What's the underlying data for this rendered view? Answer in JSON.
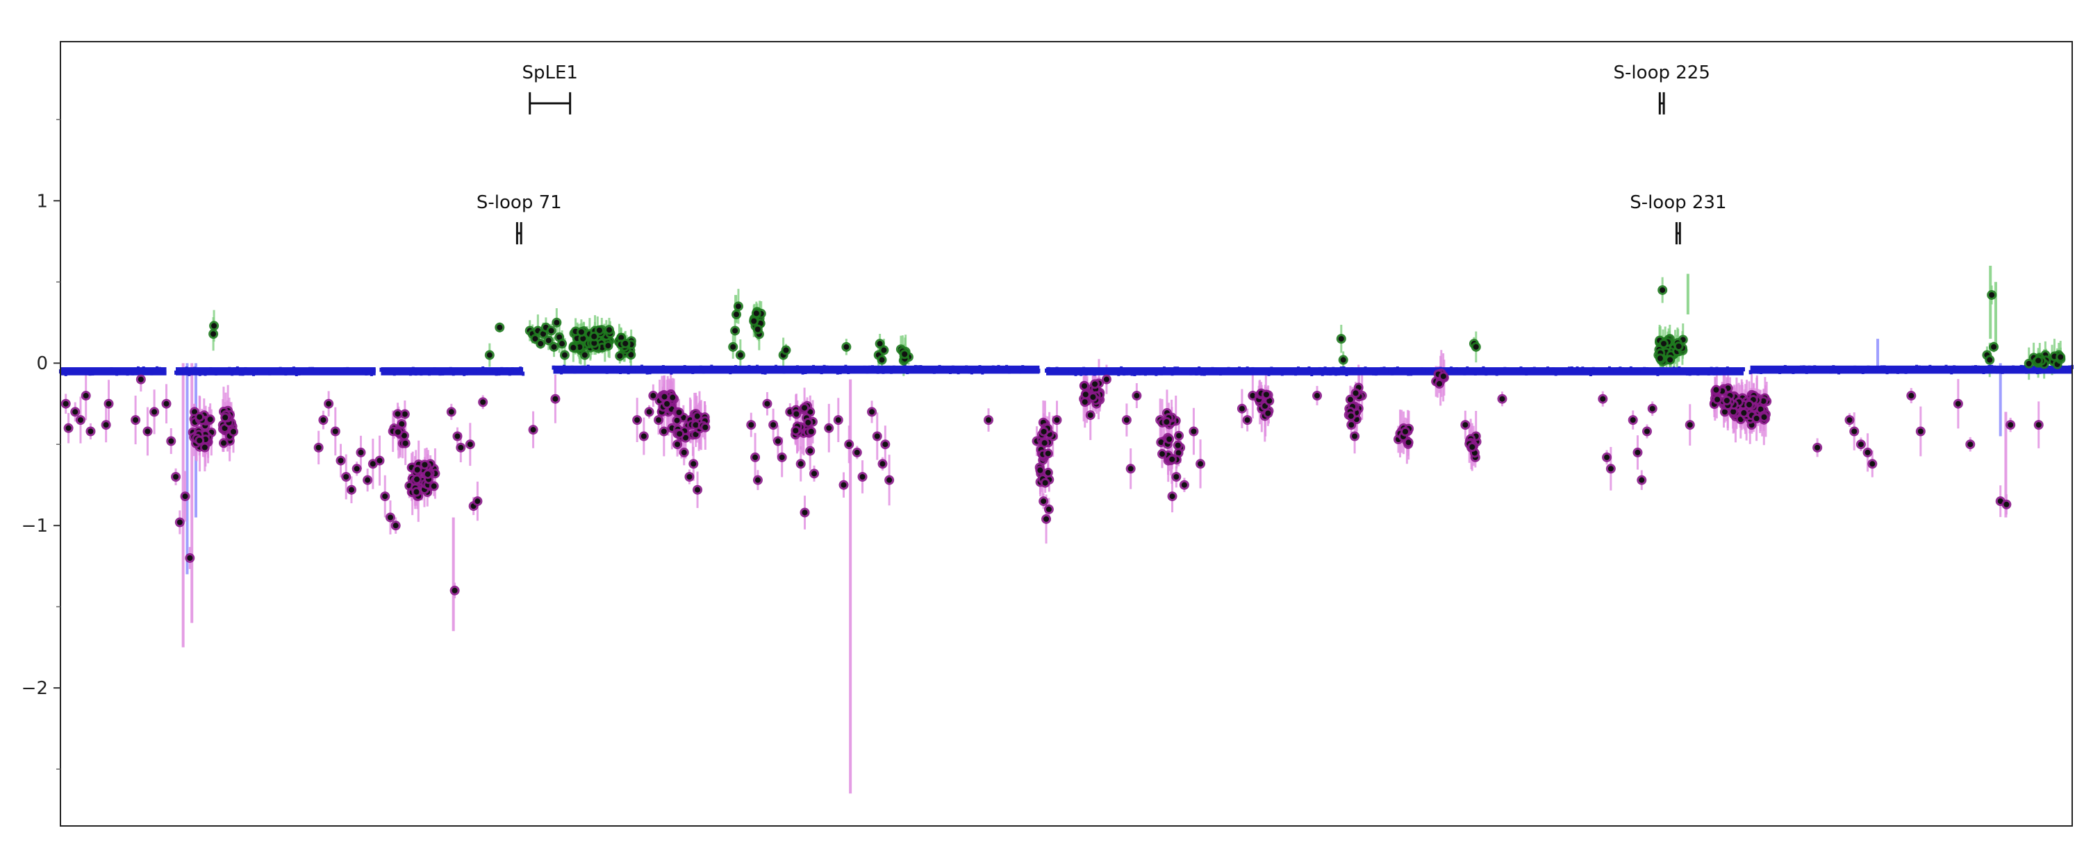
{
  "chart_data": {
    "type": "scatter",
    "title": "",
    "xlabel": "",
    "ylabel": "",
    "xlim": [
      0,
      3000
    ],
    "ylim": [
      -2.85,
      1.98
    ],
    "y_ticks": [
      {
        "value": 1,
        "label": "1"
      },
      {
        "value": 0,
        "label": "0"
      },
      {
        "value": -1,
        "label": "−1"
      },
      {
        "value": -2,
        "label": "−2"
      }
    ],
    "grid": false,
    "colors": {
      "baseline": "#1c1ccc",
      "positive": "#1f7a1f",
      "negative": "#8a1a8a",
      "points": "#111111",
      "positive_error": "#7fcf7f",
      "negative_error": "#e08ce0",
      "baseline_error": "#8f8fff"
    },
    "annotations": [
      {
        "label": "SpLE1",
        "start": 700,
        "end": 760,
        "level": 1.6
      },
      {
        "label": "S-loop 71",
        "start": 681,
        "end": 687,
        "level": 0.8
      },
      {
        "label": "S-loop 225",
        "start": 2385,
        "end": 2391,
        "level": 1.6
      },
      {
        "label": "S-loop 231",
        "start": 2410,
        "end": 2415,
        "level": 0.8
      }
    ],
    "baseline_segments": [
      {
        "start": 0,
        "end": 158,
        "value": -0.05
      },
      {
        "start": 172,
        "end": 470,
        "value": -0.05
      },
      {
        "start": 478,
        "end": 690,
        "value": -0.05
      },
      {
        "start": 735,
        "end": 1460,
        "value": -0.04
      },
      {
        "start": 1470,
        "end": 2510,
        "value": -0.05
      },
      {
        "start": 2520,
        "end": 3000,
        "value": -0.04
      }
    ],
    "error_spikes": [
      {
        "x": 183,
        "low": -1.75,
        "high": 0,
        "kind": "neg"
      },
      {
        "x": 189,
        "low": -1.3,
        "high": 0,
        "kind": "base"
      },
      {
        "x": 196,
        "low": -1.6,
        "high": 0,
        "kind": "neg"
      },
      {
        "x": 202,
        "low": -0.95,
        "high": 0,
        "kind": "base"
      },
      {
        "x": 586,
        "low": -1.65,
        "high": -0.95,
        "kind": "neg"
      },
      {
        "x": 1178,
        "low": -2.65,
        "high": -0.1,
        "kind": "neg"
      },
      {
        "x": 2710,
        "low": -0.05,
        "high": 0.15,
        "kind": "base"
      },
      {
        "x": 2893,
        "low": -0.45,
        "high": 0,
        "kind": "base"
      },
      {
        "x": 2901,
        "low": -0.95,
        "high": -0.3,
        "kind": "neg"
      },
      {
        "x": 2878,
        "low": 0.15,
        "high": 0.6,
        "kind": "pos"
      },
      {
        "x": 2886,
        "low": 0.1,
        "high": 0.5,
        "kind": "pos"
      },
      {
        "x": 2427,
        "low": 0.3,
        "high": 0.55,
        "kind": "pos"
      },
      {
        "x": 1007,
        "low": 0.25,
        "high": 0.42,
        "kind": "pos"
      }
    ],
    "series": [
      {
        "kind": "positive",
        "points": [
          [
            228,
            0.18
          ],
          [
            229,
            0.23
          ],
          [
            640,
            0.05
          ],
          [
            655,
            0.22
          ],
          [
            700,
            0.2
          ],
          [
            704,
            0.18
          ],
          [
            708,
            0.15
          ],
          [
            712,
            0.2
          ],
          [
            716,
            0.12
          ],
          [
            720,
            0.18
          ],
          [
            724,
            0.22
          ],
          [
            728,
            0.14
          ],
          [
            732,
            0.2
          ],
          [
            736,
            0.1
          ],
          [
            740,
            0.25
          ],
          [
            744,
            0.16
          ],
          [
            748,
            0.12
          ],
          [
            752,
            0.05
          ],
          [
            770,
            0.18
          ],
          [
            773,
            0.12
          ],
          [
            776,
            0.08
          ],
          [
            779,
            0.15
          ],
          [
            782,
            0.05
          ],
          [
            1003,
            0.1
          ],
          [
            1006,
            0.2
          ],
          [
            1008,
            0.3
          ],
          [
            1011,
            0.35
          ],
          [
            1014,
            0.05
          ],
          [
            1078,
            0.05
          ],
          [
            1082,
            0.08
          ],
          [
            1172,
            0.1
          ],
          [
            1220,
            0.05
          ],
          [
            1222,
            0.12
          ],
          [
            1225,
            0.02
          ],
          [
            1228,
            0.08
          ],
          [
            1910,
            0.15
          ],
          [
            1913,
            0.02
          ],
          [
            2108,
            0.12
          ],
          [
            2111,
            0.1
          ],
          [
            2383,
            0.05
          ],
          [
            2386,
            0.12
          ],
          [
            2389,
            0.45
          ],
          [
            2392,
            0.08
          ],
          [
            2395,
            0.02
          ],
          [
            2400,
            0.15
          ],
          [
            2404,
            0.05
          ],
          [
            2408,
            0.1
          ],
          [
            2412,
            0.08
          ],
          [
            2873,
            0.05
          ],
          [
            2877,
            0.02
          ],
          [
            2880,
            0.42
          ],
          [
            2883,
            0.1
          ],
          [
            2960,
            0.05
          ],
          [
            2970,
            0.02
          ],
          [
            2980,
            0.05
          ]
        ]
      },
      {
        "kind": "negative",
        "points": [
          [
            8,
            -0.25
          ],
          [
            12,
            -0.4
          ],
          [
            22,
            -0.3
          ],
          [
            30,
            -0.35
          ],
          [
            38,
            -0.2
          ],
          [
            45,
            -0.42
          ],
          [
            68,
            -0.38
          ],
          [
            72,
            -0.25
          ],
          [
            112,
            -0.35
          ],
          [
            120,
            -0.1
          ],
          [
            130,
            -0.42
          ],
          [
            140,
            -0.3
          ],
          [
            158,
            -0.25
          ],
          [
            165,
            -0.48
          ],
          [
            172,
            -0.7
          ],
          [
            178,
            -0.98
          ],
          [
            186,
            -0.82
          ],
          [
            193,
            -1.2
          ],
          [
            200,
            -0.3
          ],
          [
            385,
            -0.52
          ],
          [
            392,
            -0.35
          ],
          [
            400,
            -0.25
          ],
          [
            410,
            -0.42
          ],
          [
            418,
            -0.6
          ],
          [
            426,
            -0.7
          ],
          [
            434,
            -0.78
          ],
          [
            442,
            -0.65
          ],
          [
            448,
            -0.55
          ],
          [
            458,
            -0.72
          ],
          [
            466,
            -0.62
          ],
          [
            476,
            -0.6
          ],
          [
            484,
            -0.82
          ],
          [
            492,
            -0.95
          ],
          [
            500,
            -1.0
          ],
          [
            557,
            -0.65
          ],
          [
            588,
            -1.4
          ],
          [
            583,
            -0.3
          ],
          [
            592,
            -0.45
          ],
          [
            597,
            -0.52
          ],
          [
            611,
            -0.5
          ],
          [
            616,
            -0.88
          ],
          [
            622,
            -0.85
          ],
          [
            630,
            -0.24
          ],
          [
            705,
            -0.41
          ],
          [
            738,
            -0.22
          ],
          [
            860,
            -0.35
          ],
          [
            870,
            -0.45
          ],
          [
            878,
            -0.3
          ],
          [
            884,
            -0.2
          ],
          [
            892,
            -0.35
          ],
          [
            900,
            -0.42
          ],
          [
            906,
            -0.28
          ],
          [
            912,
            -0.4
          ],
          [
            920,
            -0.5
          ],
          [
            930,
            -0.55
          ],
          [
            938,
            -0.7
          ],
          [
            944,
            -0.62
          ],
          [
            950,
            -0.78
          ],
          [
            1030,
            -0.38
          ],
          [
            1036,
            -0.58
          ],
          [
            1040,
            -0.72
          ],
          [
            1054,
            -0.25
          ],
          [
            1063,
            -0.38
          ],
          [
            1070,
            -0.48
          ],
          [
            1076,
            -0.58
          ],
          [
            1088,
            -0.3
          ],
          [
            1096,
            -0.44
          ],
          [
            1104,
            -0.62
          ],
          [
            1110,
            -0.92
          ],
          [
            1118,
            -0.54
          ],
          [
            1124,
            -0.68
          ],
          [
            1146,
            -0.4
          ],
          [
            1160,
            -0.35
          ],
          [
            1168,
            -0.75
          ],
          [
            1176,
            -0.5
          ],
          [
            1188,
            -0.55
          ],
          [
            1196,
            -0.7
          ],
          [
            1210,
            -0.3
          ],
          [
            1218,
            -0.45
          ],
          [
            1226,
            -0.62
          ],
          [
            1230,
            -0.5
          ],
          [
            1236,
            -0.72
          ],
          [
            1384,
            -0.35
          ],
          [
            1456,
            -0.48
          ],
          [
            1462,
            -0.68
          ],
          [
            1466,
            -0.85
          ],
          [
            1470,
            -0.96
          ],
          [
            1474,
            -0.9
          ],
          [
            1480,
            -0.45
          ],
          [
            1486,
            -0.35
          ],
          [
            1526,
            -0.22
          ],
          [
            1536,
            -0.32
          ],
          [
            1545,
            -0.25
          ],
          [
            1560,
            -0.1
          ],
          [
            1590,
            -0.35
          ],
          [
            1596,
            -0.65
          ],
          [
            1605,
            -0.2
          ],
          [
            1640,
            -0.35
          ],
          [
            1646,
            -0.48
          ],
          [
            1652,
            -0.6
          ],
          [
            1658,
            -0.82
          ],
          [
            1664,
            -0.7
          ],
          [
            1670,
            -0.52
          ],
          [
            1676,
            -0.75
          ],
          [
            1690,
            -0.42
          ],
          [
            1700,
            -0.62
          ],
          [
            1762,
            -0.28
          ],
          [
            1770,
            -0.35
          ],
          [
            1778,
            -0.2
          ],
          [
            1874,
            -0.2
          ],
          [
            1925,
            -0.38
          ],
          [
            1930,
            -0.45
          ],
          [
            1941,
            -0.2
          ],
          [
            2000,
            -0.42
          ],
          [
            2008,
            -0.48
          ],
          [
            2095,
            -0.38
          ],
          [
            2104,
            -0.52
          ],
          [
            2110,
            -0.58
          ],
          [
            2150,
            -0.22
          ],
          [
            2300,
            -0.22
          ],
          [
            2306,
            -0.58
          ],
          [
            2312,
            -0.65
          ],
          [
            2345,
            -0.35
          ],
          [
            2352,
            -0.55
          ],
          [
            2358,
            -0.72
          ],
          [
            2366,
            -0.42
          ],
          [
            2374,
            -0.28
          ],
          [
            2430,
            -0.38
          ],
          [
            2470,
            -0.2
          ],
          [
            2482,
            -0.3
          ],
          [
            2496,
            -0.28
          ],
          [
            2508,
            -0.25
          ],
          [
            2522,
            -0.38
          ],
          [
            2542,
            -0.22
          ],
          [
            2620,
            -0.52
          ],
          [
            2668,
            -0.35
          ],
          [
            2675,
            -0.42
          ],
          [
            2685,
            -0.5
          ],
          [
            2695,
            -0.55
          ],
          [
            2702,
            -0.62
          ],
          [
            2760,
            -0.2
          ],
          [
            2774,
            -0.42
          ],
          [
            2848,
            -0.5
          ],
          [
            2893,
            -0.85
          ],
          [
            2902,
            -0.87
          ],
          [
            2908,
            -0.38
          ],
          [
            2830,
            -0.25
          ],
          [
            2950,
            -0.38
          ]
        ],
        "clusters": [
          {
            "x": 210,
            "y": -0.42,
            "spread_x": 16,
            "spread_y": 0.1,
            "n": 34
          },
          {
            "x": 250,
            "y": -0.42,
            "spread_x": 8,
            "spread_y": 0.14,
            "n": 22
          },
          {
            "x": 540,
            "y": -0.72,
            "spread_x": 20,
            "spread_y": 0.1,
            "n": 40
          },
          {
            "x": 505,
            "y": -0.4,
            "spread_x": 10,
            "spread_y": 0.1,
            "n": 14
          },
          {
            "x": 905,
            "y": -0.25,
            "spread_x": 12,
            "spread_y": 0.06,
            "n": 24
          },
          {
            "x": 940,
            "y": -0.38,
            "spread_x": 22,
            "spread_y": 0.08,
            "n": 36
          },
          {
            "x": 1110,
            "y": -0.35,
            "spread_x": 14,
            "spread_y": 0.09,
            "n": 20
          },
          {
            "x": 1468,
            "y": -0.55,
            "spread_x": 8,
            "spread_y": 0.2,
            "n": 26
          },
          {
            "x": 1537,
            "y": -0.18,
            "spread_x": 14,
            "spread_y": 0.06,
            "n": 22
          },
          {
            "x": 1655,
            "y": -0.45,
            "spread_x": 14,
            "spread_y": 0.15,
            "n": 22
          },
          {
            "x": 1795,
            "y": -0.25,
            "spread_x": 10,
            "spread_y": 0.08,
            "n": 16
          },
          {
            "x": 1928,
            "y": -0.25,
            "spread_x": 10,
            "spread_y": 0.1,
            "n": 14
          },
          {
            "x": 2003,
            "y": -0.45,
            "spread_x": 8,
            "spread_y": 0.05,
            "n": 10
          },
          {
            "x": 2056,
            "y": -0.1,
            "spread_x": 8,
            "spread_y": 0.04,
            "n": 10
          },
          {
            "x": 2106,
            "y": -0.5,
            "spread_x": 6,
            "spread_y": 0.06,
            "n": 10
          },
          {
            "x": 2520,
            "y": -0.27,
            "spread_x": 26,
            "spread_y": 0.08,
            "n": 60
          },
          {
            "x": 2480,
            "y": -0.2,
            "spread_x": 14,
            "spread_y": 0.06,
            "n": 20
          }
        ]
      },
      {
        "kind": "positive_clusters",
        "points": [],
        "clusters": [
          {
            "x": 792,
            "y": 0.15,
            "spread_x": 28,
            "spread_y": 0.06,
            "n": 60
          },
          {
            "x": 842,
            "y": 0.1,
            "spread_x": 10,
            "spread_y": 0.06,
            "n": 18
          },
          {
            "x": 1040,
            "y": 0.25,
            "spread_x": 6,
            "spread_y": 0.08,
            "n": 14
          },
          {
            "x": 1258,
            "y": 0.05,
            "spread_x": 8,
            "spread_y": 0.04,
            "n": 10
          },
          {
            "x": 2396,
            "y": 0.08,
            "spread_x": 12,
            "spread_y": 0.07,
            "n": 32
          },
          {
            "x": 2414,
            "y": 0.1,
            "spread_x": 6,
            "spread_y": 0.05,
            "n": 8
          },
          {
            "x": 2955,
            "y": 0.02,
            "spread_x": 30,
            "spread_y": 0.03,
            "n": 16
          }
        ]
      }
    ]
  }
}
